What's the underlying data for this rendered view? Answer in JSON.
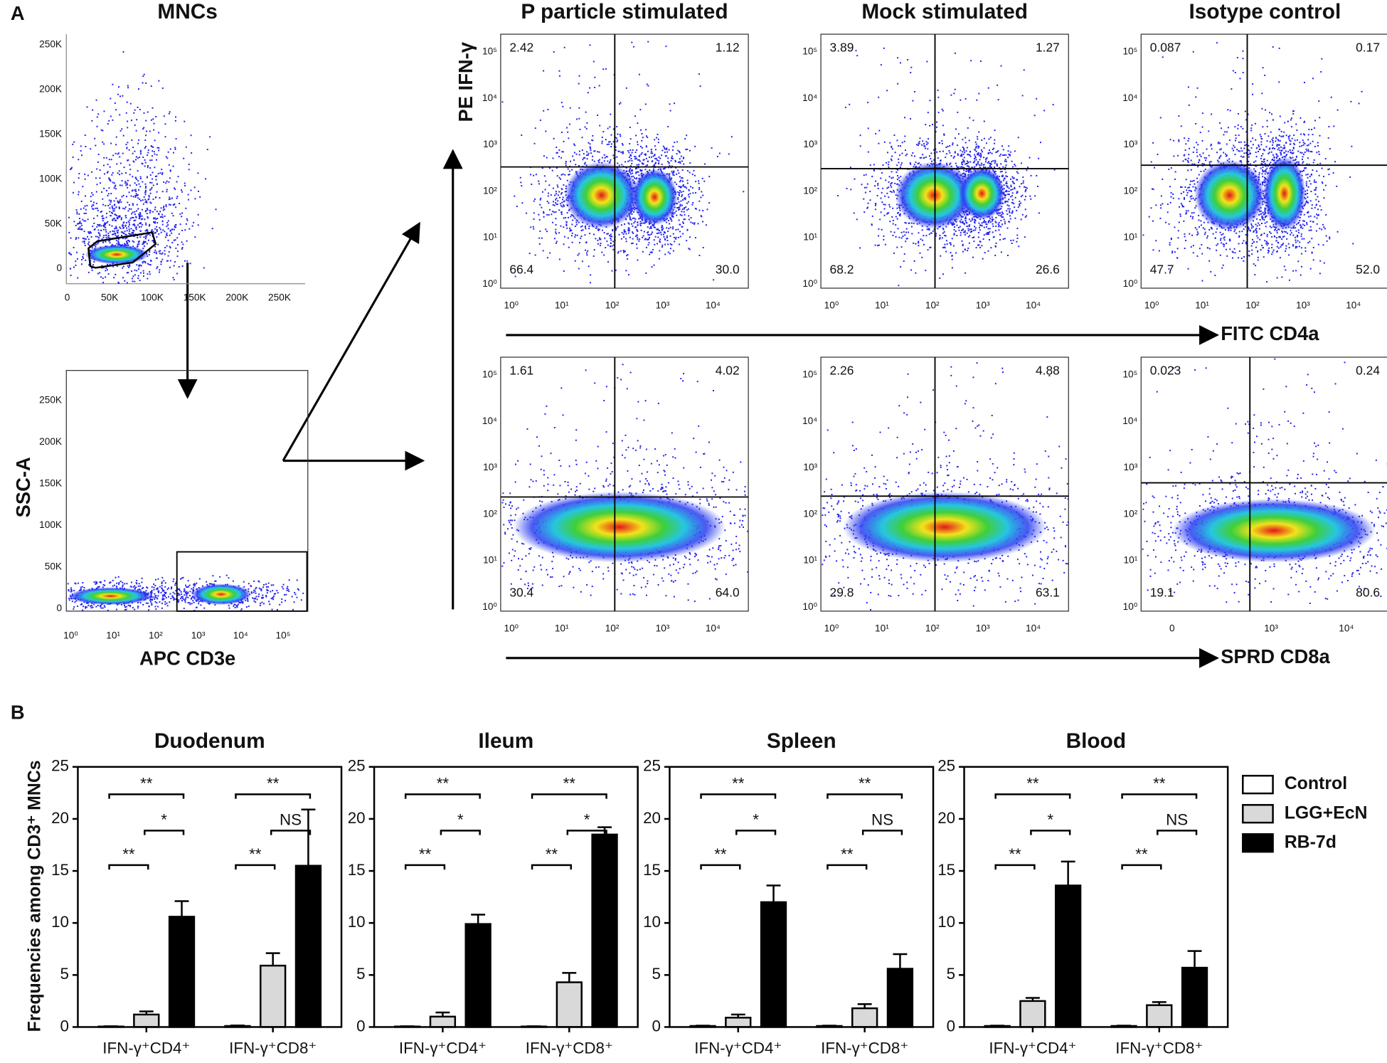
{
  "panel_a": {
    "label": "A",
    "mnc_plot": {
      "title": "MNCs",
      "xticks": [
        "0",
        "50K",
        "100K",
        "150K",
        "200K",
        "250K"
      ],
      "yticks": [
        "0",
        "50K",
        "100K",
        "150K",
        "200K",
        "250K"
      ]
    },
    "cd3_plot": {
      "ylabel": "SSC-A",
      "xlabel": "APC CD3e",
      "xticks": [
        "10⁰",
        "10¹",
        "10²",
        "10³",
        "10⁴",
        "10⁵"
      ],
      "yticks": [
        "0",
        "50K",
        "100K",
        "150K",
        "200K",
        "250K"
      ]
    },
    "columns": [
      "P particle stimulated",
      "Mock stimulated",
      "Isotype control"
    ],
    "y_axis_label": "PE  IFN-γ",
    "rows": [
      {
        "axis_label": "FITC CD4a",
        "plots": [
          {
            "quadrants": [
              "2.42",
              "1.12",
              "66.4",
              "30.0"
            ],
            "xticks": [
              "10⁰",
              "10¹",
              "10²",
              "10³",
              "10⁴"
            ],
            "yticks": [
              "10⁵",
              "10⁴",
              "10³",
              "10²",
              "10¹",
              "10⁰"
            ]
          },
          {
            "quadrants": [
              "3.89",
              "1.27",
              "68.2",
              "26.6"
            ],
            "xticks": [
              "10⁰",
              "10¹",
              "10²",
              "10³",
              "10⁴"
            ],
            "yticks": [
              "10⁵",
              "10⁴",
              "10³",
              "10²",
              "10¹",
              "10⁰"
            ]
          },
          {
            "quadrants": [
              "0.087",
              "0.17",
              "47.7",
              "52.0"
            ],
            "xticks": [
              "10⁰",
              "10¹",
              "10²",
              "10³",
              "10⁴"
            ],
            "yticks": [
              "10⁵",
              "10⁴",
              "10³",
              "10²",
              "10¹",
              "10⁰"
            ]
          }
        ]
      },
      {
        "axis_label": "SPRD CD8a",
        "plots": [
          {
            "quadrants": [
              "1.61",
              "4.02",
              "30.4",
              "64.0"
            ],
            "xticks": [
              "10⁰",
              "10¹",
              "10²",
              "10³",
              "10⁴"
            ],
            "yticks": [
              "10⁵",
              "10⁴",
              "10³",
              "10²",
              "10¹",
              "10⁰"
            ]
          },
          {
            "quadrants": [
              "2.26",
              "4.88",
              "29.8",
              "63.1"
            ],
            "xticks": [
              "10⁰",
              "10¹",
              "10²",
              "10³",
              "10⁴"
            ],
            "yticks": [
              "10⁵",
              "10⁴",
              "10³",
              "10²",
              "10¹",
              "10⁰"
            ]
          },
          {
            "quadrants": [
              "0.023",
              "0.24",
              "19.1",
              "80.6"
            ],
            "xticks": [
              "0",
              "10³",
              "10⁴"
            ],
            "yticks": [
              "10⁵",
              "10⁴",
              "10³",
              "10²",
              "10¹",
              "10⁰"
            ]
          }
        ]
      }
    ]
  },
  "panel_b": {
    "label": "B",
    "ylabel": "Frequencies among CD3⁺ MNCs"
  },
  "chart_data": [
    {
      "type": "bar",
      "title": "Duodenum",
      "categories": [
        "IFN-γ⁺CD4⁺",
        "IFN-γ⁺CD8⁺"
      ],
      "ylim": [
        0,
        25
      ],
      "yticks": [
        0,
        5,
        10,
        15,
        20,
        25
      ],
      "series": [
        {
          "name": "Control",
          "color": "#ffffff",
          "values": [
            0.05,
            0.1
          ],
          "errors": [
            0.02,
            0.05
          ]
        },
        {
          "name": "LGG+EcN",
          "color": "#d9d9d9",
          "values": [
            1.2,
            5.9
          ],
          "errors": [
            0.3,
            1.2
          ]
        },
        {
          "name": "RB-7d",
          "color": "#000000",
          "values": [
            10.6,
            15.5
          ],
          "errors": [
            1.5,
            5.4
          ]
        }
      ],
      "annotations": [
        [
          "**",
          "*",
          "**"
        ],
        [
          "**",
          "NS",
          "**"
        ]
      ]
    },
    {
      "type": "bar",
      "title": "Ileum",
      "categories": [
        "IFN-γ⁺CD4⁺",
        "IFN-γ⁺CD8⁺"
      ],
      "ylim": [
        0,
        25
      ],
      "yticks": [
        0,
        5,
        10,
        15,
        20,
        25
      ],
      "series": [
        {
          "name": "Control",
          "color": "#ffffff",
          "values": [
            0.05,
            0.05
          ],
          "errors": [
            0.02,
            0.02
          ]
        },
        {
          "name": "LGG+EcN",
          "color": "#d9d9d9",
          "values": [
            1.0,
            4.3
          ],
          "errors": [
            0.4,
            0.9
          ]
        },
        {
          "name": "RB-7d",
          "color": "#000000",
          "values": [
            9.9,
            18.5
          ],
          "errors": [
            0.9,
            0.7
          ]
        }
      ],
      "annotations": [
        [
          "**",
          "*",
          "**"
        ],
        [
          "**",
          "*",
          "**"
        ]
      ]
    },
    {
      "type": "bar",
      "title": "Spleen",
      "categories": [
        "IFN-γ⁺CD4⁺",
        "IFN-γ⁺CD8⁺"
      ],
      "ylim": [
        0,
        25
      ],
      "yticks": [
        0,
        5,
        10,
        15,
        20,
        25
      ],
      "series": [
        {
          "name": "Control",
          "color": "#ffffff",
          "values": [
            0.1,
            0.1
          ],
          "errors": [
            0.03,
            0.03
          ]
        },
        {
          "name": "LGG+EcN",
          "color": "#d9d9d9",
          "values": [
            0.9,
            1.8
          ],
          "errors": [
            0.3,
            0.4
          ]
        },
        {
          "name": "RB-7d",
          "color": "#000000",
          "values": [
            12.0,
            5.6
          ],
          "errors": [
            1.6,
            1.4
          ]
        }
      ],
      "annotations": [
        [
          "**",
          "*",
          "**"
        ],
        [
          "**",
          "NS",
          "**"
        ]
      ]
    },
    {
      "type": "bar",
      "title": "Blood",
      "categories": [
        "IFN-γ⁺CD4⁺",
        "IFN-γ⁺CD8⁺"
      ],
      "ylim": [
        0,
        25
      ],
      "yticks": [
        0,
        5,
        10,
        15,
        20,
        25
      ],
      "series": [
        {
          "name": "Control",
          "color": "#ffffff",
          "values": [
            0.1,
            0.1
          ],
          "errors": [
            0.03,
            0.03
          ]
        },
        {
          "name": "LGG+EcN",
          "color": "#d9d9d9",
          "values": [
            2.5,
            2.1
          ],
          "errors": [
            0.3,
            0.3
          ]
        },
        {
          "name": "RB-7d",
          "color": "#000000",
          "values": [
            13.6,
            5.7
          ],
          "errors": [
            2.3,
            1.6
          ]
        }
      ],
      "annotations": [
        [
          "**",
          "*",
          "**"
        ],
        [
          "**",
          "NS",
          "**"
        ]
      ]
    }
  ]
}
